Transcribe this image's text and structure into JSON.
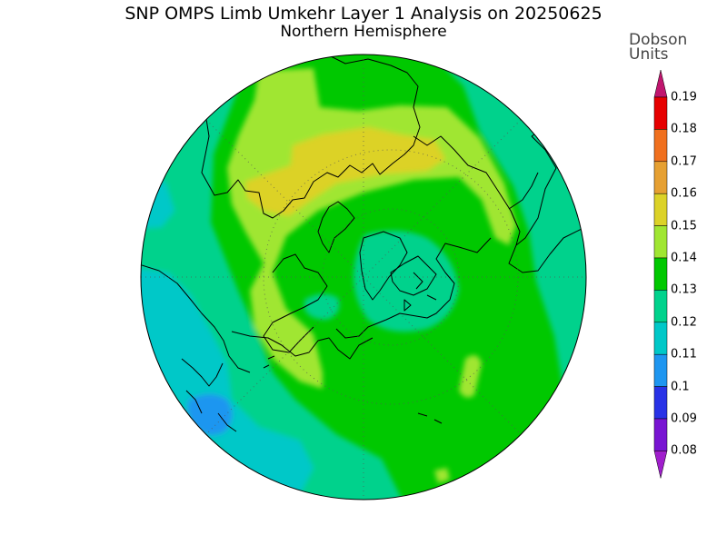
{
  "title": "SNP OMPS Limb Umkehr Layer 1 Analysis on 20250625",
  "subtitle": "Northern Hemisphere",
  "legend": {
    "title_line1": "Dobson",
    "title_line2": "Units",
    "levels": [
      "0.19",
      "0.18",
      "0.17",
      "0.16",
      "0.15",
      "0.14",
      "0.13",
      "0.12",
      "0.11",
      "0.1",
      "0.09",
      "0.08"
    ],
    "colors": {
      "top_arrow": "#c0156e",
      "0.18-0.19": "#e60000",
      "0.17-0.18": "#f0701e",
      "0.16-0.17": "#e6a032",
      "0.15-0.16": "#dcd228",
      "0.14-0.15": "#a0e632",
      "0.13-0.14": "#00c800",
      "0.12-0.13": "#00d28c",
      "0.11-0.12": "#00c8c8",
      "0.10-0.11": "#1e96f0",
      "0.09-0.10": "#2832e6",
      "0.08-0.09": "#7814d2",
      "bottom_arrow": "#a01ecc"
    }
  },
  "map": {
    "projection": "polar-stereographic-north",
    "background": "#00c800"
  }
}
